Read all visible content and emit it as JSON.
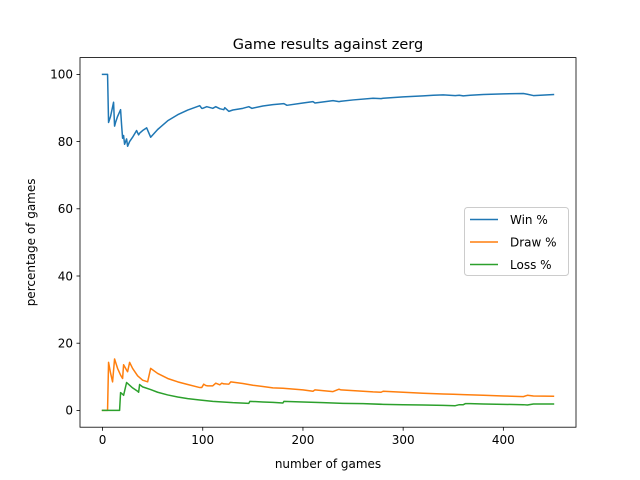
{
  "chart_data": {
    "type": "line",
    "title": "Game results against zerg",
    "xlabel": "number of games",
    "ylabel": "percentage of games",
    "xlim": [
      -22.5,
      472.5
    ],
    "ylim": [
      -5,
      105
    ],
    "xticks": [
      0,
      100,
      200,
      300,
      400
    ],
    "yticks": [
      0,
      20,
      40,
      60,
      80,
      100
    ],
    "grid": false,
    "legend_position": "center-right",
    "series": [
      {
        "name": "Win %",
        "color": "#1f77b4",
        "x": [
          0,
          5,
          6,
          8,
          11,
          12,
          13,
          15,
          18,
          19,
          20,
          21,
          22,
          23,
          24,
          25,
          27,
          30,
          34,
          36,
          37,
          40,
          44,
          48,
          55,
          65,
          75,
          85,
          97,
          99,
          100,
          104,
          110,
          113,
          117,
          121,
          122,
          126,
          130,
          140,
          146,
          149,
          160,
          170,
          181,
          184,
          200,
          210,
          212,
          230,
          236,
          238,
          250,
          270,
          278,
          280,
          300,
          320,
          330,
          340,
          352,
          356,
          360,
          367,
          380,
          400,
          420,
          424,
          430,
          450
        ],
        "y": [
          100,
          100,
          85.7,
          87.5,
          91.7,
          84.6,
          85.7,
          87.5,
          89.5,
          85,
          81,
          81.8,
          79.2,
          80,
          80.8,
          78.6,
          80,
          81.3,
          83.3,
          82,
          82.5,
          83.3,
          84.1,
          81.3,
          83.6,
          86.2,
          88,
          89.4,
          90.7,
          89.9,
          89.9,
          90.4,
          89.9,
          90.4,
          89.8,
          89.5,
          90.1,
          89,
          89.4,
          89.9,
          90.4,
          89.9,
          90.6,
          91,
          91.3,
          90.8,
          91.5,
          91.9,
          91.5,
          92.2,
          91.9,
          92,
          92.4,
          92.9,
          92.8,
          92.9,
          93.3,
          93.6,
          93.8,
          93.9,
          93.7,
          93.8,
          93.6,
          93.8,
          94,
          94.2,
          94.3,
          94.1,
          93.7,
          94
        ]
      },
      {
        "name": "Draw %",
        "color": "#ff7f0e",
        "x": [
          0,
          5,
          6,
          8,
          10,
          12,
          15,
          18,
          20,
          21,
          24,
          25,
          27,
          30,
          35,
          40,
          45,
          48,
          55,
          65,
          75,
          85,
          97,
          99,
          101,
          103,
          105,
          110,
          113,
          117,
          119,
          121,
          122,
          126,
          128,
          140,
          150,
          160,
          170,
          180,
          200,
          210,
          212,
          230,
          236,
          238,
          250,
          270,
          278,
          280,
          300,
          320,
          330,
          340,
          350,
          360,
          380,
          400,
          420,
          424,
          430,
          450
        ],
        "y": [
          0,
          0,
          14.3,
          11.1,
          8.5,
          15.3,
          12.5,
          10.5,
          9.5,
          13.6,
          12,
          11.5,
          14.3,
          12.5,
          10.3,
          9,
          8.5,
          12.5,
          11,
          9.5,
          8.5,
          7.7,
          6.8,
          6.8,
          7.8,
          7.4,
          7.3,
          7.3,
          8.1,
          7.6,
          8.1,
          7.9,
          7.9,
          7.8,
          8.5,
          8,
          7.5,
          7.1,
          6.7,
          6.6,
          6.1,
          5.7,
          6.1,
          5.6,
          6.3,
          6.1,
          5.9,
          5.5,
          5.4,
          5.7,
          5.4,
          5.1,
          5,
          4.9,
          4.8,
          4.7,
          4.5,
          4.3,
          4.1,
          4.5,
          4.3,
          4.2
        ]
      },
      {
        "name": "Loss %",
        "color": "#2ca02c",
        "x": [
          0,
          17,
          18,
          20,
          21,
          24,
          30,
          35,
          36,
          37,
          40,
          48,
          55,
          65,
          75,
          85,
          97,
          110,
          120,
          130,
          146,
          147,
          160,
          170,
          180,
          181,
          200,
          220,
          240,
          260,
          280,
          300,
          320,
          340,
          352,
          356,
          360,
          362,
          367,
          380,
          400,
          420,
          424,
          430,
          450
        ],
        "y": [
          0,
          0,
          5.3,
          4.8,
          4.5,
          8.3,
          6.7,
          5.7,
          5.4,
          7.7,
          7,
          6.2,
          5.4,
          4.6,
          4,
          3.5,
          3.1,
          2.7,
          2.5,
          2.3,
          2.1,
          2.7,
          2.5,
          2.4,
          2.2,
          2.7,
          2.5,
          2.3,
          2.1,
          2,
          1.8,
          1.7,
          1.6,
          1.5,
          1.4,
          1.7,
          1.7,
          2,
          2,
          1.9,
          1.8,
          1.7,
          1.6,
          1.9,
          1.9
        ]
      }
    ]
  }
}
